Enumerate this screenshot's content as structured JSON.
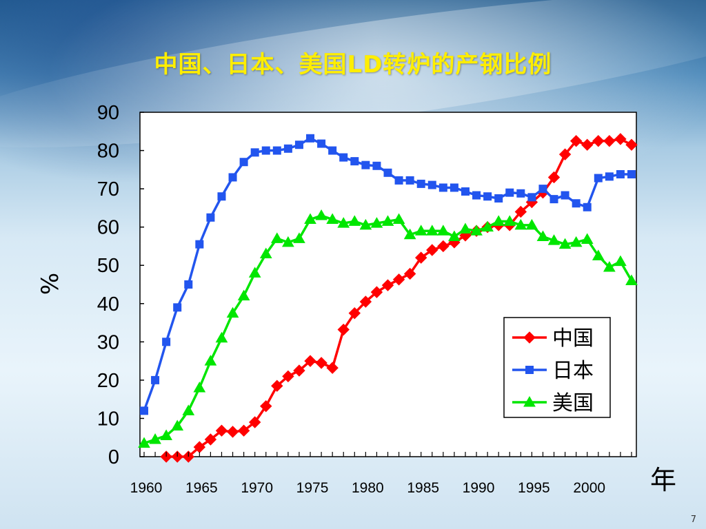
{
  "slide": {
    "title": "中国、日本、美国LD转炉的产钢比例",
    "page_number": "7"
  },
  "chart_data": {
    "type": "line",
    "title": "中国、日本、美国LD转炉的产钢比例",
    "xlabel": "年",
    "ylabel": "%",
    "xlim": [
      1960,
      2004
    ],
    "ylim": [
      0,
      90
    ],
    "x_ticks": [
      1960,
      1965,
      1970,
      1975,
      1980,
      1985,
      1990,
      1995,
      2000
    ],
    "y_ticks": [
      0,
      10,
      20,
      30,
      40,
      50,
      60,
      70,
      80,
      90
    ],
    "grid": false,
    "legend_position": "lower-right",
    "series": [
      {
        "name": "中国",
        "color": "#ff0000",
        "marker": "diamond",
        "x": [
          1962,
          1963,
          1964,
          1965,
          1966,
          1967,
          1968,
          1969,
          1970,
          1971,
          1972,
          1973,
          1974,
          1975,
          1976,
          1977,
          1978,
          1979,
          1980,
          1981,
          1982,
          1983,
          1984,
          1985,
          1986,
          1987,
          1988,
          1989,
          1990,
          1991,
          1992,
          1993,
          1994,
          1995,
          1996,
          1997,
          1998,
          1999,
          2000,
          2001,
          2002,
          2003,
          2004
        ],
        "values": [
          0,
          0,
          0,
          2.5,
          4.5,
          6.8,
          6.5,
          6.8,
          9,
          13.2,
          18.5,
          21,
          22.5,
          25,
          24.5,
          23.2,
          33.2,
          37.5,
          40.5,
          43,
          44.8,
          46.3,
          47.8,
          52,
          54,
          55,
          56,
          57.8,
          59,
          60,
          60.5,
          60.5,
          64,
          66.5,
          69,
          73,
          79,
          82.5,
          81.5,
          82.5,
          82.5,
          83,
          81.5
        ]
      },
      {
        "name": "日本",
        "color": "#2255ee",
        "marker": "square",
        "x": [
          1960,
          1961,
          1962,
          1963,
          1964,
          1965,
          1966,
          1967,
          1968,
          1969,
          1970,
          1971,
          1972,
          1973,
          1974,
          1975,
          1976,
          1977,
          1978,
          1979,
          1980,
          1981,
          1982,
          1983,
          1984,
          1985,
          1986,
          1987,
          1988,
          1989,
          1990,
          1991,
          1992,
          1993,
          1994,
          1995,
          1996,
          1997,
          1998,
          1999,
          2000,
          2001,
          2002,
          2003,
          2004
        ],
        "values": [
          12,
          20,
          30,
          39,
          45,
          55.5,
          62.5,
          68,
          73,
          77,
          79.5,
          80,
          80,
          80.5,
          81.5,
          83.2,
          81.8,
          80,
          78.2,
          77.2,
          76.2,
          76,
          74.2,
          72.2,
          72.2,
          71.3,
          71,
          70.3,
          70.3,
          69.3,
          68.3,
          68,
          67.5,
          69,
          68.8,
          67.8,
          70,
          67.3,
          68.3,
          66.2,
          65.2,
          72.8,
          73.2,
          73.8,
          73.8
        ]
      },
      {
        "name": "美国",
        "color": "#00e600",
        "marker": "triangle",
        "x": [
          1960,
          1961,
          1962,
          1963,
          1964,
          1965,
          1966,
          1967,
          1968,
          1969,
          1970,
          1971,
          1972,
          1973,
          1974,
          1975,
          1976,
          1977,
          1978,
          1979,
          1980,
          1981,
          1982,
          1983,
          1984,
          1985,
          1986,
          1987,
          1988,
          1989,
          1990,
          1991,
          1992,
          1993,
          1994,
          1995,
          1996,
          1997,
          1998,
          1999,
          2000,
          2001,
          2002,
          2003,
          2004
        ],
        "values": [
          3.5,
          4.5,
          5.5,
          8,
          12,
          18,
          25,
          31,
          37.5,
          42,
          48,
          53,
          57,
          56,
          57,
          62,
          63,
          62,
          61,
          61.5,
          60.5,
          61,
          61.5,
          62,
          58,
          59,
          59,
          59,
          57.5,
          59.5,
          59,
          60,
          61.5,
          61.5,
          60.5,
          60.5,
          57.5,
          56.5,
          55.5,
          56,
          56.8,
          52.5,
          49.5,
          51,
          46
        ]
      }
    ]
  }
}
